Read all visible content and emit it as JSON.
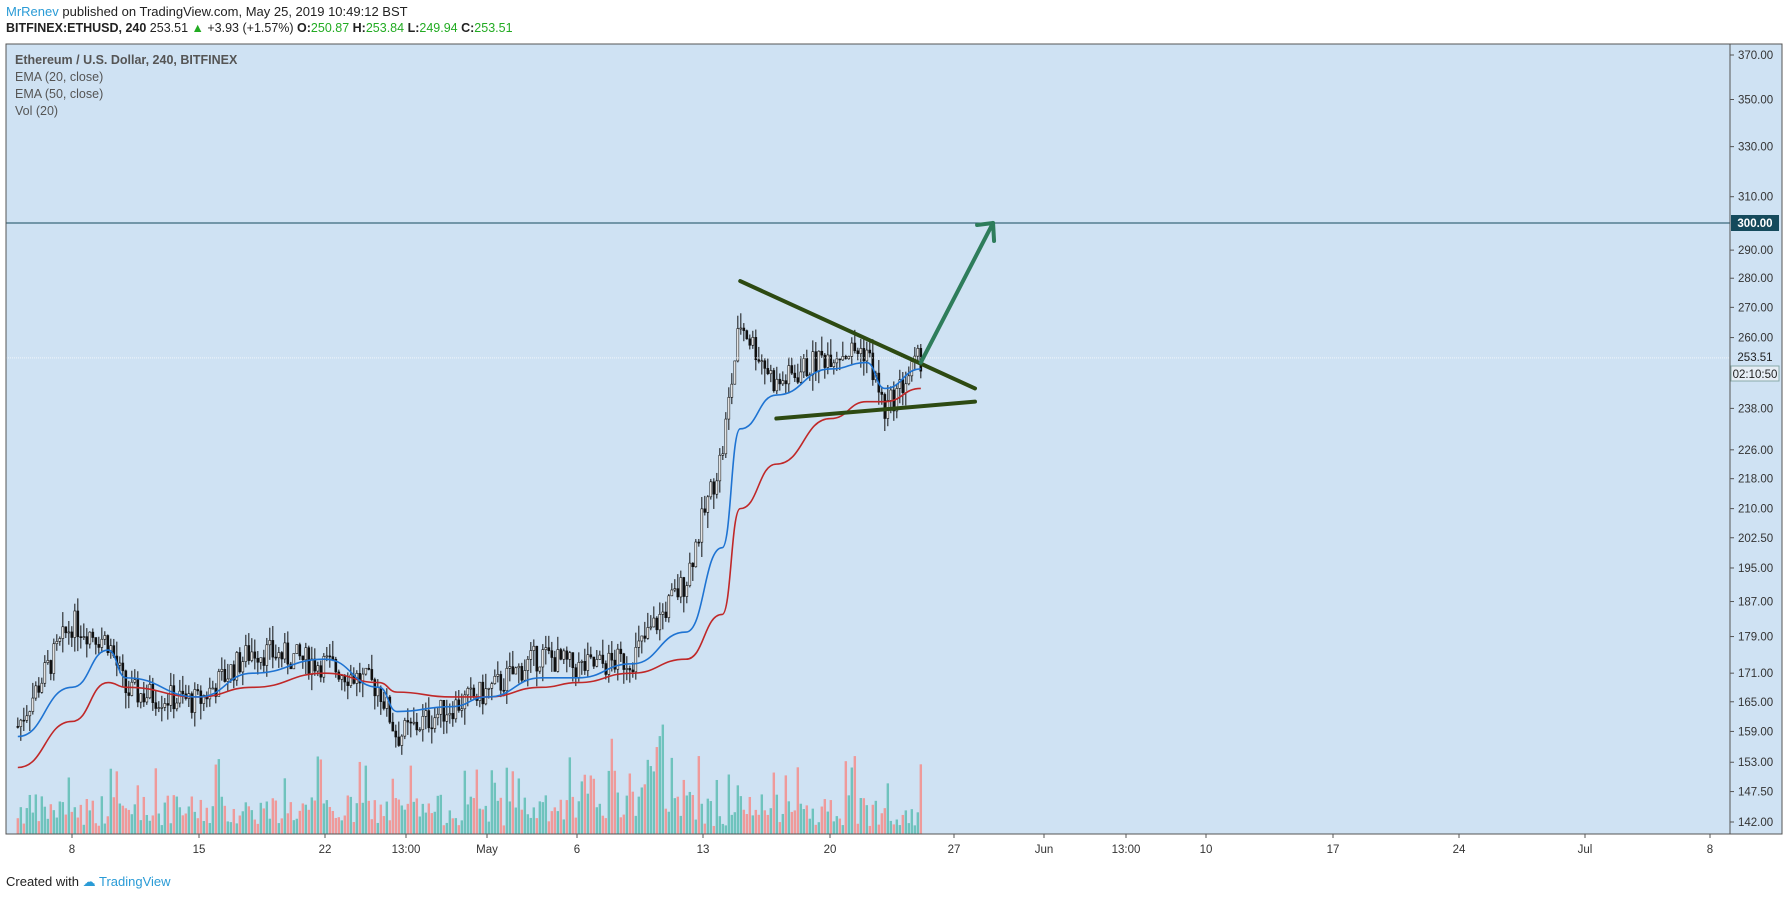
{
  "header": {
    "author": "MrRenev",
    "published_text": "published on TradingView.com, May 25, 2019 10:49:12 BST",
    "symbol": "BITFINEX:ETHUSD, 240",
    "last": "253.51",
    "change_arrow": "▲",
    "change": "+3.93 (+1.57%)",
    "o_label": "O:",
    "o_value": "250.87",
    "h_label": "H:",
    "h_value": "253.84",
    "l_label": "L:",
    "l_value": "249.94",
    "c_label": "C:",
    "c_value": "253.51"
  },
  "legend": {
    "title": "Ethereum / U.S. Dollar, 240, BITFINEX",
    "ema20": "EMA (20, close)",
    "ema50": "EMA (50, close)",
    "vol": "Vol (20)"
  },
  "footer": {
    "created_with": "Created with",
    "brand": "TradingView"
  },
  "colors": {
    "background": "#cfe2f3",
    "ema20": "#1e73d2",
    "ema50": "#c02828",
    "vol_up": "#6fc3bd",
    "vol_down": "#ef9a9a",
    "triangle": "#2d4a12",
    "arrow": "#2e7d5b",
    "level_line": "#154a5c"
  },
  "chart_data": {
    "type": "line",
    "title": "Ethereum / U.S. Dollar, 240, BITFINEX",
    "xlabel": "",
    "ylabel": "",
    "ylim": [
      142,
      370
    ],
    "y_scale": "log",
    "y_ticks": [
      "370.00",
      "350.00",
      "330.00",
      "310.00",
      "290.00",
      "280.00",
      "270.00",
      "260.00",
      "238.00",
      "226.00",
      "218.00",
      "210.00",
      "202.50",
      "195.00",
      "187.00",
      "179.00",
      "171.00",
      "165.00",
      "159.00",
      "153.00",
      "147.50",
      "142.00"
    ],
    "x_ticks": [
      "8",
      "15",
      "22",
      "13:00",
      "May",
      "6",
      "13",
      "20",
      "27",
      "Jun",
      "13:00",
      "10",
      "17",
      "24",
      "Jul",
      "8"
    ],
    "price_badges": {
      "level": "300.00",
      "last": "253.51",
      "countdown": "02:10:50"
    },
    "price_series": {
      "dates": [
        "Apr 5",
        "Apr 8",
        "Apr 10",
        "Apr 11",
        "Apr 15",
        "Apr 18",
        "Apr 22",
        "Apr 25",
        "Apr 26",
        "Apr 29",
        "May 1",
        "May 4",
        "May 6",
        "May 9",
        "May 12",
        "May 14",
        "May 15",
        "May 17",
        "May 20",
        "May 22",
        "May 23",
        "May 25"
      ],
      "close": [
        160,
        182,
        178,
        167,
        165,
        176,
        173,
        168,
        158,
        164,
        167,
        175,
        172,
        174,
        192,
        225,
        265,
        245,
        255,
        256,
        237,
        253.5
      ]
    },
    "ema20": {
      "dates": [
        "Apr 5",
        "Apr 8",
        "Apr 10",
        "Apr 11",
        "Apr 15",
        "Apr 18",
        "Apr 22",
        "Apr 25",
        "Apr 26",
        "Apr 29",
        "May 1",
        "May 4",
        "May 6",
        "May 9",
        "May 12",
        "May 14",
        "May 15",
        "May 17",
        "May 20",
        "May 22",
        "May 23",
        "May 25"
      ],
      "values": [
        158,
        168,
        176,
        170,
        166,
        171,
        174,
        168,
        163,
        164,
        166,
        170,
        170,
        173,
        180,
        200,
        232,
        242,
        250,
        252,
        244,
        250
      ]
    },
    "ema50": {
      "dates": [
        "Apr 5",
        "Apr 8",
        "Apr 10",
        "Apr 11",
        "Apr 15",
        "Apr 18",
        "Apr 22",
        "Apr 25",
        "Apr 26",
        "Apr 29",
        "May 1",
        "May 4",
        "May 6",
        "May 9",
        "May 12",
        "May 14",
        "May 15",
        "May 17",
        "May 20",
        "May 22",
        "May 23",
        "May 25"
      ],
      "values": [
        152,
        161,
        169,
        168,
        166,
        168,
        171,
        169,
        167,
        166,
        166,
        168,
        169,
        171,
        174,
        184,
        210,
        222,
        235,
        240,
        240,
        244
      ]
    },
    "volume_note": "Vol (20) histogram bars, relative heights",
    "levels": [
      {
        "price": 300.0
      }
    ],
    "drawings": {
      "triangle_upper": [
        [
          "May 15",
          279
        ],
        [
          "May 28",
          244
        ]
      ],
      "triangle_lower": [
        [
          "May 17",
          235
        ],
        [
          "May 28",
          240
        ]
      ],
      "arrow": [
        [
          "May 25",
          252
        ],
        [
          "May 29",
          300
        ]
      ]
    }
  }
}
